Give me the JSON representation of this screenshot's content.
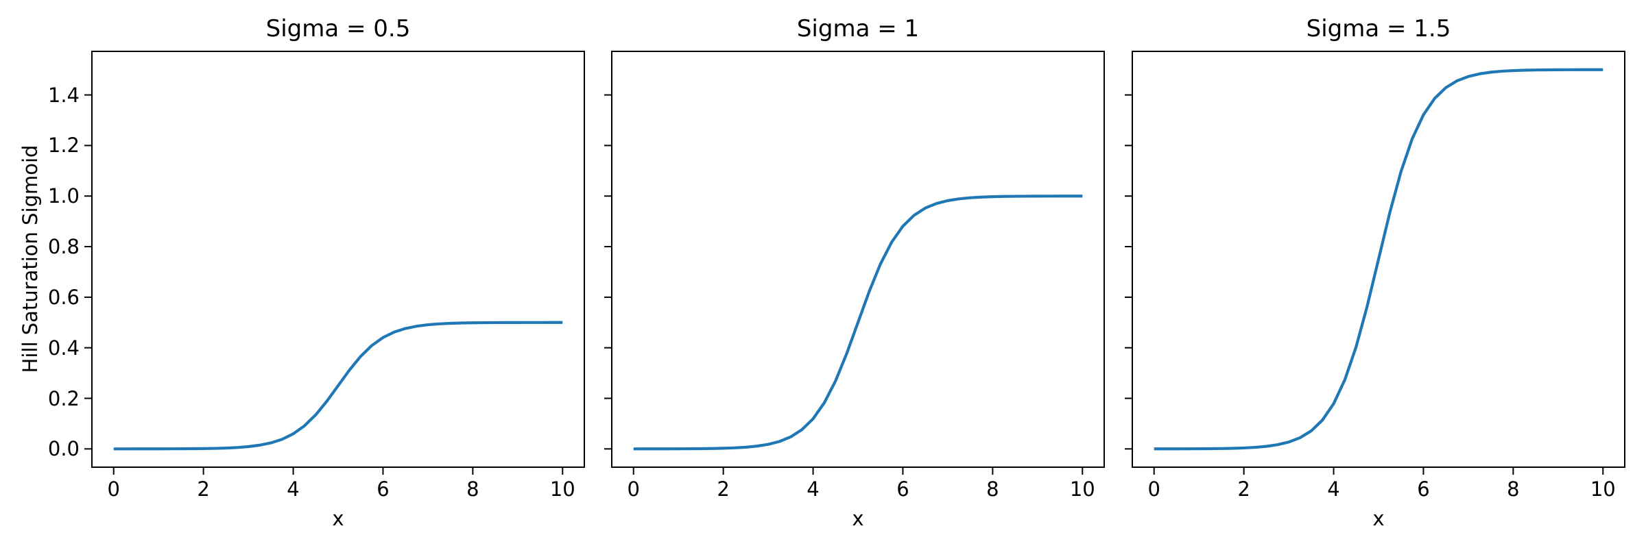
{
  "chart_data": {
    "type": "line",
    "xlabel": "x",
    "ylabel": "Hill Saturation Sigmoid",
    "xlim": [
      -0.5,
      10.5
    ],
    "ylim": [
      -0.075,
      1.575
    ],
    "xticks": [
      0,
      2,
      4,
      6,
      8,
      10
    ],
    "xticklabels": [
      "0",
      "2",
      "4",
      "6",
      "8",
      "10"
    ],
    "yticks": [
      0.0,
      0.2,
      0.4,
      0.6,
      0.8,
      1.0,
      1.2,
      1.4
    ],
    "yticklabels": [
      "0.0",
      "0.2",
      "0.4",
      "0.6",
      "0.8",
      "1.0",
      "1.2",
      "1.4"
    ],
    "grid": false,
    "line_color": "#1f77b4",
    "spine_color": "#000000",
    "x": [
      0,
      0.25,
      0.5,
      0.75,
      1,
      1.25,
      1.5,
      1.75,
      2,
      2.25,
      2.5,
      2.75,
      3,
      3.25,
      3.5,
      3.75,
      4,
      4.25,
      4.5,
      4.75,
      5,
      5.25,
      5.5,
      5.75,
      6,
      6.25,
      6.5,
      6.75,
      7,
      7.25,
      7.5,
      7.75,
      8,
      8.25,
      8.5,
      8.75,
      9,
      9.25,
      9.5,
      9.75,
      10
    ],
    "subplots": [
      {
        "title": "Sigma = 0.5",
        "sigma": 0.5,
        "y": [
          0.0,
          0.0,
          0.0001,
          0.0001,
          0.0002,
          0.0003,
          0.0005,
          0.0008,
          0.0012,
          0.002,
          0.0033,
          0.0055,
          0.009,
          0.0147,
          0.0237,
          0.0379,
          0.0596,
          0.0912,
          0.1345,
          0.1888,
          0.25,
          0.3112,
          0.3655,
          0.4088,
          0.4404,
          0.4621,
          0.4763,
          0.4853,
          0.491,
          0.4945,
          0.4967,
          0.498,
          0.4988,
          0.4992,
          0.4995,
          0.4997,
          0.4998,
          0.4999,
          0.4999,
          0.5,
          0.5
        ]
      },
      {
        "title": "Sigma = 1",
        "sigma": 1,
        "y": [
          0.0,
          0.0001,
          0.0001,
          0.0002,
          0.0003,
          0.0006,
          0.0009,
          0.0015,
          0.0025,
          0.0041,
          0.0067,
          0.011,
          0.018,
          0.0293,
          0.0474,
          0.0759,
          0.1192,
          0.1824,
          0.2689,
          0.3775,
          0.5,
          0.6225,
          0.7311,
          0.8176,
          0.8808,
          0.9241,
          0.9526,
          0.9707,
          0.982,
          0.989,
          0.9933,
          0.9959,
          0.9975,
          0.9985,
          0.9991,
          0.9994,
          0.9997,
          0.9998,
          0.9999,
          0.9999,
          1.0
        ]
      },
      {
        "title": "Sigma = 1.5",
        "sigma": 1.5,
        "y": [
          0.0001,
          0.0001,
          0.0002,
          0.0003,
          0.0005,
          0.0008,
          0.0014,
          0.0023,
          0.0037,
          0.0061,
          0.01,
          0.0165,
          0.027,
          0.044,
          0.0711,
          0.1138,
          0.1788,
          0.2736,
          0.4034,
          0.5663,
          0.75,
          0.9337,
          1.0966,
          1.2264,
          1.3212,
          1.3862,
          1.4289,
          1.456,
          1.473,
          1.4835,
          1.49,
          1.4939,
          1.4963,
          1.4977,
          1.4986,
          1.4992,
          1.4995,
          1.4997,
          1.4998,
          1.4999,
          1.4999
        ]
      }
    ]
  }
}
